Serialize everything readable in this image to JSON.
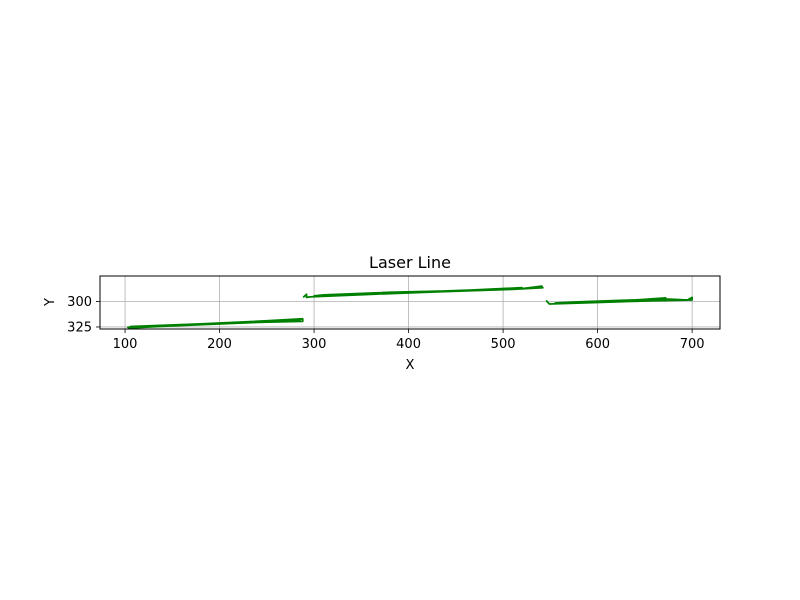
{
  "chart_data": {
    "type": "line",
    "title": "Laser Line",
    "xlabel": "X",
    "ylabel": "Y",
    "xlim": [
      73.5,
      729.5
    ],
    "ylim": [
      327,
      275
    ],
    "y_inverted": true,
    "grid": true,
    "xticks": [
      100,
      200,
      300,
      400,
      500,
      600,
      700
    ],
    "yticks": [
      300,
      325
    ],
    "line_color": "#008000",
    "series": [
      {
        "points": [
          [
            103,
            325.3
          ],
          [
            170,
            322.5
          ],
          [
            230,
            320.0
          ],
          [
            285,
            317.5
          ],
          [
            285,
            318.5
          ],
          [
            225,
            321.0
          ],
          [
            160,
            323.5
          ],
          [
            104,
            326.0
          ],
          [
            106,
            324.5
          ],
          [
            180,
            322.0
          ],
          [
            250,
            319.0
          ],
          [
            288,
            317.0
          ],
          [
            288,
            319.5
          ],
          [
            240,
            320.5
          ],
          [
            150,
            324.0
          ],
          [
            105,
            325.5
          ]
        ]
      },
      {
        "points": [
          [
            289,
            295.5
          ],
          [
            292,
            293.0
          ],
          [
            292,
            296.0
          ],
          [
            296,
            295.5
          ],
          [
            360,
            293.0
          ],
          [
            430,
            290.5
          ],
          [
            510,
            288.0
          ],
          [
            542,
            286.5
          ],
          [
            541,
            285.0
          ],
          [
            520,
            287.5
          ],
          [
            460,
            289.0
          ],
          [
            400,
            291.0
          ],
          [
            340,
            293.0
          ],
          [
            300,
            294.5
          ],
          [
            310,
            293.5
          ],
          [
            380,
            291.0
          ],
          [
            450,
            289.5
          ],
          [
            520,
            286.5
          ]
        ]
      },
      {
        "points": [
          [
            546,
            299.5
          ],
          [
            549,
            302.5
          ],
          [
            600,
            301.0
          ],
          [
            650,
            299.5
          ],
          [
            700,
            298.5
          ],
          [
            700,
            296.0
          ],
          [
            695,
            298.5
          ],
          [
            670,
            297.5
          ],
          [
            620,
            299.0
          ],
          [
            575,
            300.5
          ],
          [
            555,
            301.5
          ],
          [
            600,
            300.0
          ],
          [
            640,
            298.5
          ],
          [
            672,
            296.5
          ],
          [
            672,
            297.5
          ]
        ]
      }
    ]
  }
}
